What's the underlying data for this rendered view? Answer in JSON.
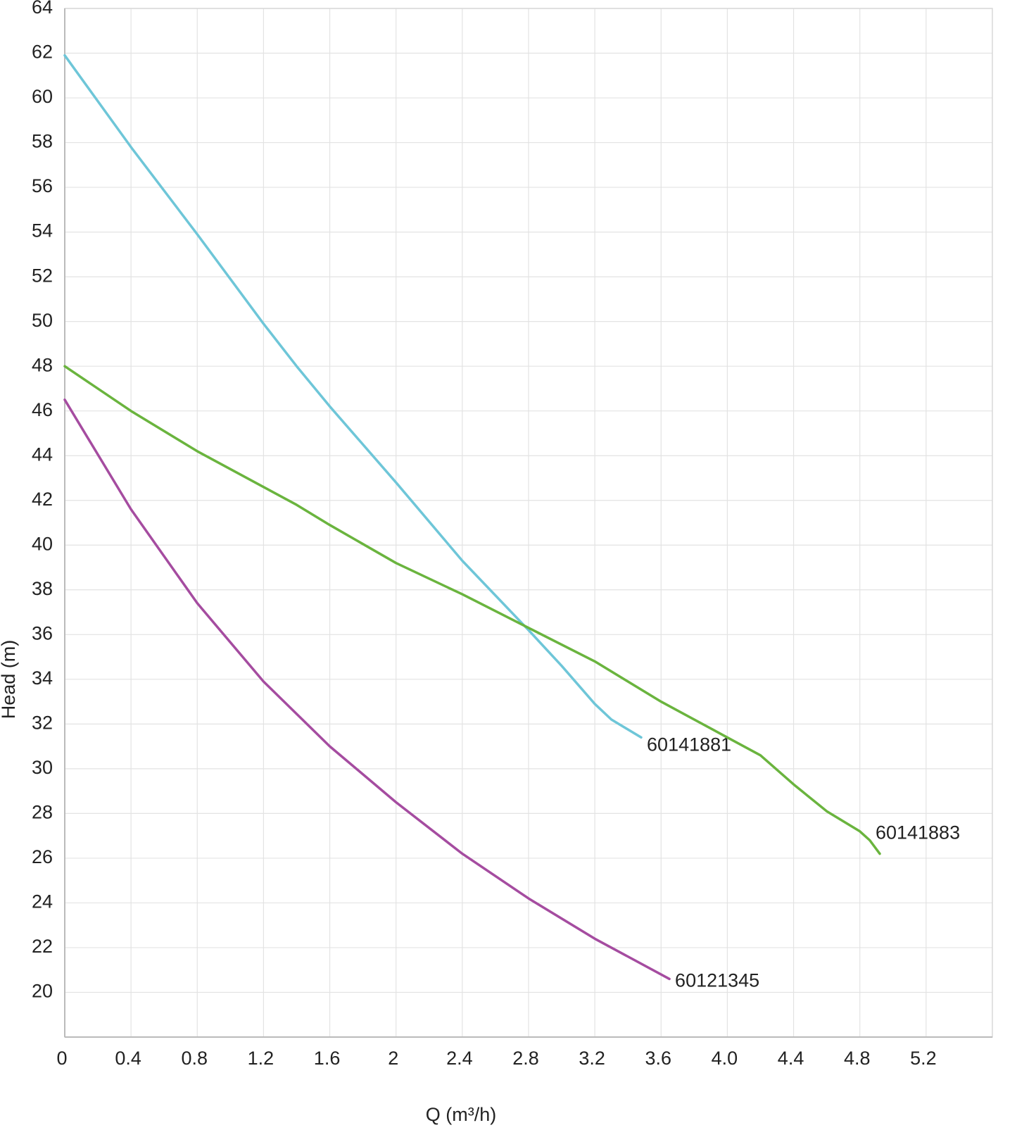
{
  "chart_data": {
    "type": "line",
    "x_label": "Q (m³/h)",
    "y_label": "Head (m)",
    "xlim": [
      0,
      5.6
    ],
    "ylim": [
      18,
      64
    ],
    "xticks": [
      0,
      0.4,
      0.8,
      1.2,
      1.6,
      2,
      2.4,
      2.8,
      3.2,
      3.6,
      {
        "value": 4,
        "label": "4.0"
      },
      4.4,
      4.8,
      5.2
    ],
    "yticks": [
      20,
      22,
      24,
      26,
      28,
      30,
      32,
      34,
      36,
      38,
      40,
      42,
      44,
      46,
      48,
      50,
      52,
      54,
      56,
      58,
      60,
      62,
      64
    ],
    "grid": true,
    "series": [
      {
        "name": "60141881",
        "color": "#6ec6d8",
        "x": [
          0,
          0.4,
          0.8,
          1.2,
          1.4,
          1.6,
          2.0,
          2.4,
          2.8,
          3.0,
          3.2,
          3.3,
          3.48
        ],
        "values": [
          61.9,
          57.8,
          53.9,
          49.9,
          48.0,
          46.2,
          42.8,
          39.3,
          36.2,
          34.6,
          32.9,
          32.2,
          31.4
        ]
      },
      {
        "name": "60141883",
        "color": "#6ab43e",
        "x": [
          0,
          0.4,
          0.8,
          1.2,
          1.4,
          1.6,
          2.0,
          2.4,
          2.8,
          3.2,
          3.6,
          4.0,
          4.2,
          4.4,
          4.6,
          4.8,
          4.86,
          4.92
        ],
        "values": [
          48,
          46,
          44.2,
          42.6,
          41.8,
          40.9,
          39.2,
          37.8,
          36.3,
          34.8,
          33.0,
          31.4,
          30.6,
          29.3,
          28.1,
          27.2,
          26.8,
          26.2
        ]
      },
      {
        "name": "60121345",
        "color": "#a54ca0",
        "x": [
          0,
          0.4,
          0.8,
          1.2,
          1.6,
          2.0,
          2.4,
          2.8,
          3.2,
          3.65
        ],
        "values": [
          46.5,
          41.6,
          37.4,
          33.9,
          31.0,
          28.5,
          26.2,
          24.2,
          22.4,
          20.6
        ]
      }
    ]
  }
}
